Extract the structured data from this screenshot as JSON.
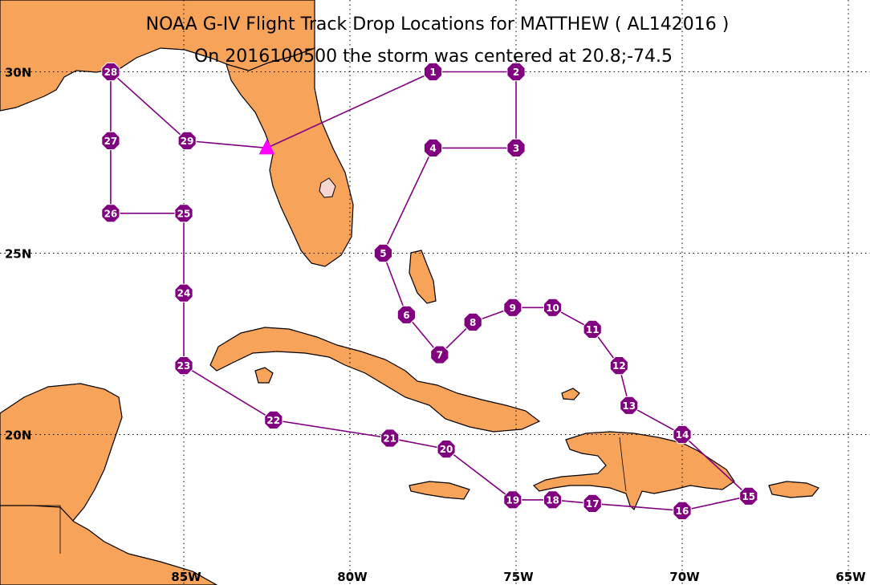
{
  "title": "NOAA G-IV Flight Track Drop Locations for MATTHEW ( AL142016 )",
  "subtitle": "On 2016100500 the storm was centered at 20.8;-74.5",
  "colors": {
    "land": "#f8a35a",
    "track": "#800080",
    "drop_marker": "#800080",
    "storm_marker": "#ff00ff"
  },
  "axes": {
    "lon_ticks": [
      {
        "label": "85W",
        "lon": -85
      },
      {
        "label": "80W",
        "lon": -80
      },
      {
        "label": "75W",
        "lon": -75
      },
      {
        "label": "70W",
        "lon": -70
      },
      {
        "label": "65W",
        "lon": -65
      }
    ],
    "lat_ticks": [
      {
        "label": "30N",
        "lat": 30
      },
      {
        "label": "25N",
        "lat": 25
      },
      {
        "label": "20N",
        "lat": 20
      }
    ]
  },
  "storm": {
    "lat": 20.8,
    "lon": -74.5
  },
  "track_start": {
    "lat": 27.9,
    "lon": -82.5
  },
  "drops": [
    {
      "id": "1",
      "lat": 30.0,
      "lon": -77.5
    },
    {
      "id": "2",
      "lat": 30.0,
      "lon": -75.0
    },
    {
      "id": "3",
      "lat": 27.9,
      "lon": -75.0
    },
    {
      "id": "4",
      "lat": 27.9,
      "lon": -77.5
    },
    {
      "id": "5",
      "lat": 25.0,
      "lon": -79.0
    },
    {
      "id": "6",
      "lat": 23.3,
      "lon": -78.3
    },
    {
      "id": "7",
      "lat": 22.2,
      "lon": -77.3
    },
    {
      "id": "8",
      "lat": 23.1,
      "lon": -76.3
    },
    {
      "id": "9",
      "lat": 23.5,
      "lon": -75.1
    },
    {
      "id": "10",
      "lat": 23.5,
      "lon": -73.9
    },
    {
      "id": "11",
      "lat": 22.9,
      "lon": -72.7
    },
    {
      "id": "12",
      "lat": 21.9,
      "lon": -71.9
    },
    {
      "id": "13",
      "lat": 20.8,
      "lon": -71.6
    },
    {
      "id": "14",
      "lat": 20.0,
      "lon": -70.0
    },
    {
      "id": "15",
      "lat": 18.3,
      "lon": -68.0
    },
    {
      "id": "16",
      "lat": 17.9,
      "lon": -70.0
    },
    {
      "id": "17",
      "lat": 18.1,
      "lon": -72.7
    },
    {
      "id": "18",
      "lat": 18.2,
      "lon": -73.9
    },
    {
      "id": "19",
      "lat": 18.2,
      "lon": -75.1
    },
    {
      "id": "20",
      "lat": 19.6,
      "lon": -77.1
    },
    {
      "id": "21",
      "lat": 19.9,
      "lon": -78.8
    },
    {
      "id": "22",
      "lat": 20.4,
      "lon": -82.3
    },
    {
      "id": "23",
      "lat": 21.9,
      "lon": -85.0
    },
    {
      "id": "24",
      "lat": 23.9,
      "lon": -85.0
    },
    {
      "id": "25",
      "lat": 26.1,
      "lon": -85.0
    },
    {
      "id": "26",
      "lat": 26.1,
      "lon": -87.2
    },
    {
      "id": "27",
      "lat": 28.1,
      "lon": -87.2
    },
    {
      "id": "28",
      "lat": 30.0,
      "lon": -87.2
    },
    {
      "id": "29",
      "lat": 28.1,
      "lon": -84.9
    }
  ]
}
